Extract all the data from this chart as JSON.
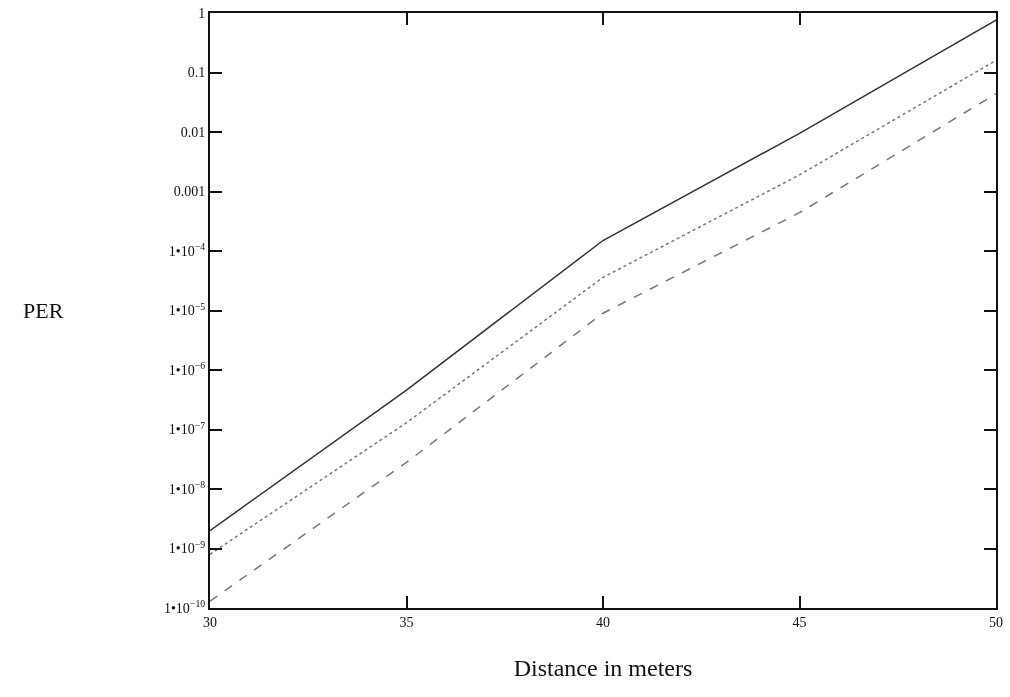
{
  "chart_data": {
    "type": "line",
    "xlabel": "Distance in meters",
    "ylabel": "PER",
    "x": [
      30,
      35,
      40,
      45,
      50
    ],
    "series": [
      {
        "color": "#333333",
        "line_style": "solid",
        "values": [
          2e-09,
          4.6e-07,
          0.00015,
          0.0095,
          0.76
        ]
      },
      {
        "color": "#777777",
        "line_style": "dotted",
        "values": [
          8e-10,
          1.3e-07,
          3.6e-05,
          0.0019,
          0.16
        ]
      },
      {
        "color": "#777777",
        "line_style": "dashed",
        "values": [
          1.3e-10,
          2.8e-08,
          9e-06,
          0.00044,
          0.044
        ]
      }
    ],
    "xlim": [
      30,
      50
    ],
    "xticks": [
      30,
      35,
      40,
      45,
      50
    ],
    "log": "y",
    "ylim": [
      1e-10,
      1
    ],
    "yticks": [
      {
        "value": 1,
        "label": "1"
      },
      {
        "value": 0.1,
        "label": "0.1"
      },
      {
        "value": 0.01,
        "label": "0.01"
      },
      {
        "value": 0.001,
        "label": "0.001"
      },
      {
        "value": 0.0001,
        "label": "1•10$^{−4}$"
      },
      {
        "value": 1e-05,
        "label": "1•10$^{−5}$"
      },
      {
        "value": 1e-06,
        "label": "1•10$^{−6}$"
      },
      {
        "value": 1e-07,
        "label": "1•10$^{−7}$"
      },
      {
        "value": 1e-08,
        "label": "1•10$^{−8}$"
      },
      {
        "value": 1e-09,
        "label": "1•10$^{−9}$"
      },
      {
        "value": 1e-10,
        "label": "1•10$^{−10}$"
      }
    ],
    "marker": "none"
  }
}
